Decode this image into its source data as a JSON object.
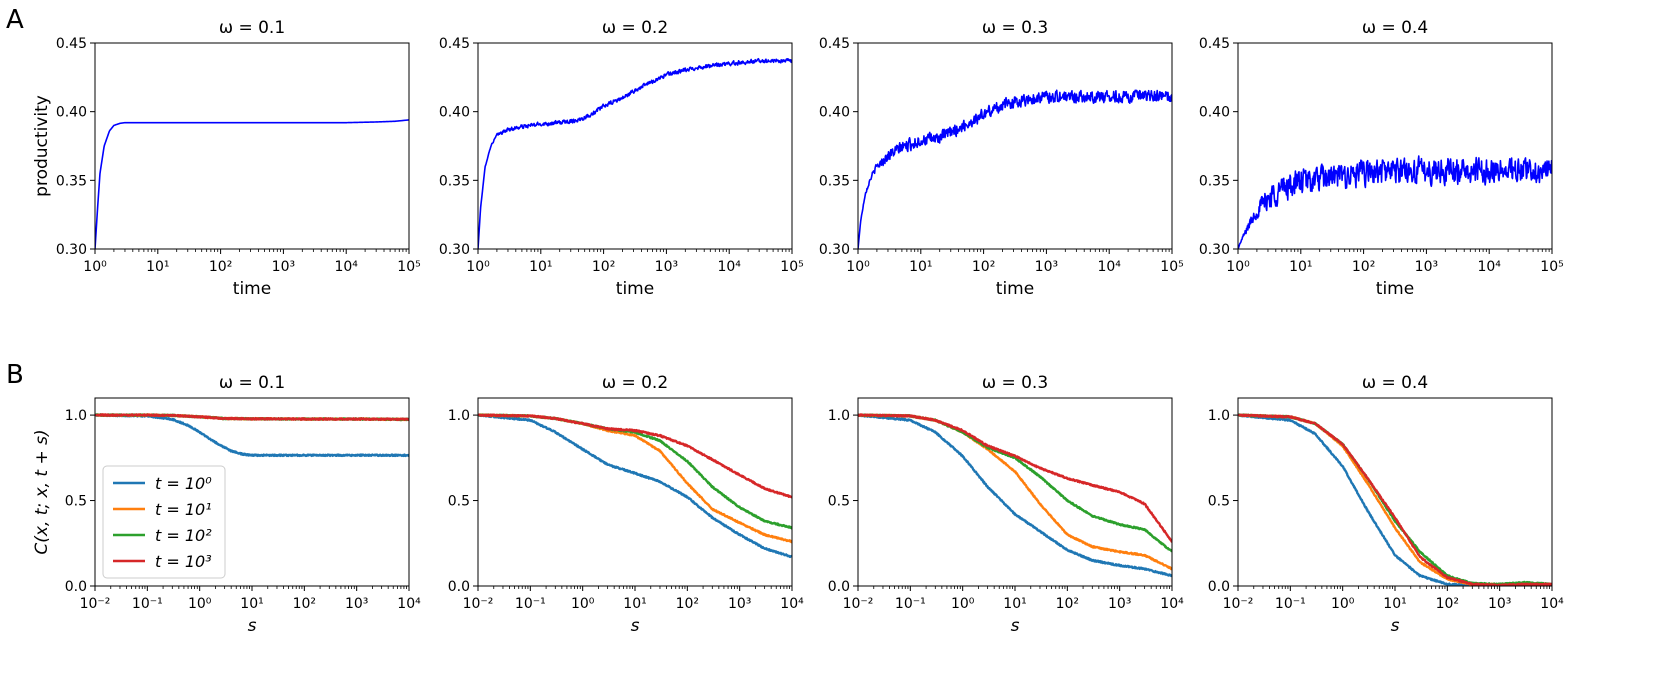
{
  "panel_letters": [
    "A",
    "B"
  ],
  "colors": {
    "productivity": "#0000ff",
    "t0": "#1f77b4",
    "t1": "#ff7f0e",
    "t2": "#2ca02c",
    "t3": "#d62728"
  },
  "chart_data": [
    {
      "type": "line",
      "panel": "A",
      "title": "ω = 0.1",
      "xlabel": "time",
      "ylabel": "productivity",
      "xscale": "log",
      "xlim": [
        1,
        100000
      ],
      "ylim": [
        0.3,
        0.45
      ],
      "xticks": [
        [
          "10⁰",
          1
        ],
        [
          "10¹",
          10
        ],
        [
          "10²",
          100
        ],
        [
          "10³",
          1000
        ],
        [
          "10⁴",
          10000
        ],
        [
          "10⁵",
          100000
        ]
      ],
      "yticks": [
        [
          "0.30",
          0.3
        ],
        [
          "0.35",
          0.35
        ],
        [
          "0.40",
          0.4
        ],
        [
          "0.45",
          0.45
        ]
      ],
      "series": [
        {
          "color_key": "productivity",
          "noise": 0.0,
          "x": [
            1,
            1.1,
            1.2,
            1.4,
            1.7,
            2,
            2.5,
            3,
            4,
            6,
            10,
            100,
            1000,
            10000,
            30000,
            60000,
            100000
          ],
          "y": [
            0.3,
            0.33,
            0.355,
            0.375,
            0.386,
            0.39,
            0.3915,
            0.392,
            0.392,
            0.392,
            0.392,
            0.392,
            0.392,
            0.392,
            0.3925,
            0.393,
            0.394
          ]
        }
      ]
    },
    {
      "type": "line",
      "panel": "A",
      "title": "ω = 0.2",
      "xlabel": "time",
      "ylabel": "",
      "xscale": "log",
      "xlim": [
        1,
        100000
      ],
      "ylim": [
        0.3,
        0.45
      ],
      "xticks": [
        [
          "10⁰",
          1
        ],
        [
          "10¹",
          10
        ],
        [
          "10²",
          100
        ],
        [
          "10³",
          1000
        ],
        [
          "10⁴",
          10000
        ],
        [
          "10⁵",
          100000
        ]
      ],
      "yticks": [
        [
          "0.30",
          0.3
        ],
        [
          "0.35",
          0.35
        ],
        [
          "0.40",
          0.4
        ],
        [
          "0.45",
          0.45
        ]
      ],
      "series": [
        {
          "color_key": "productivity",
          "noise": 0.0012,
          "x": [
            1,
            1.1,
            1.3,
            1.6,
            2,
            3,
            5,
            10,
            20,
            40,
            70,
            100,
            200,
            400,
            1000,
            3000,
            10000,
            30000,
            100000
          ],
          "y": [
            0.3,
            0.33,
            0.36,
            0.375,
            0.383,
            0.387,
            0.389,
            0.391,
            0.392,
            0.394,
            0.399,
            0.404,
            0.41,
            0.418,
            0.427,
            0.432,
            0.435,
            0.437,
            0.437
          ]
        }
      ]
    },
    {
      "type": "line",
      "panel": "A",
      "title": "ω = 0.3",
      "xlabel": "time",
      "ylabel": "",
      "xscale": "log",
      "xlim": [
        1,
        100000
      ],
      "ylim": [
        0.3,
        0.45
      ],
      "xticks": [
        [
          "10⁰",
          1
        ],
        [
          "10¹",
          10
        ],
        [
          "10²",
          100
        ],
        [
          "10³",
          1000
        ],
        [
          "10⁴",
          10000
        ],
        [
          "10⁵",
          100000
        ]
      ],
      "yticks": [
        [
          "0.30",
          0.3
        ],
        [
          "0.35",
          0.35
        ],
        [
          "0.40",
          0.4
        ],
        [
          "0.45",
          0.45
        ]
      ],
      "series": [
        {
          "color_key": "productivity",
          "noise": 0.0035,
          "x": [
            1,
            1.1,
            1.3,
            1.6,
            2,
            3,
            5,
            10,
            20,
            50,
            100,
            200,
            500,
            1000,
            3000,
            10000,
            30000,
            100000
          ],
          "y": [
            0.3,
            0.32,
            0.34,
            0.352,
            0.36,
            0.368,
            0.374,
            0.379,
            0.381,
            0.39,
            0.398,
            0.405,
            0.409,
            0.411,
            0.411,
            0.411,
            0.411,
            0.411
          ]
        }
      ]
    },
    {
      "type": "line",
      "panel": "A",
      "title": "ω = 0.4",
      "xlabel": "time",
      "ylabel": "",
      "xscale": "log",
      "xlim": [
        1,
        100000
      ],
      "ylim": [
        0.3,
        0.45
      ],
      "xticks": [
        [
          "10⁰",
          1
        ],
        [
          "10¹",
          10
        ],
        [
          "10²",
          100
        ],
        [
          "10³",
          1000
        ],
        [
          "10⁴",
          10000
        ],
        [
          "10⁵",
          100000
        ]
      ],
      "yticks": [
        [
          "0.30",
          0.3
        ],
        [
          "0.35",
          0.35
        ],
        [
          "0.40",
          0.4
        ],
        [
          "0.45",
          0.45
        ]
      ],
      "series": [
        {
          "color_key": "productivity",
          "noise": 0.0075,
          "x": [
            1,
            1.1,
            1.3,
            1.6,
            2,
            3,
            5,
            10,
            30,
            100,
            300,
            1000,
            3000,
            10000,
            30000,
            100000
          ],
          "y": [
            0.3,
            0.305,
            0.312,
            0.32,
            0.328,
            0.337,
            0.344,
            0.349,
            0.352,
            0.355,
            0.357,
            0.357,
            0.357,
            0.357,
            0.357,
            0.357
          ]
        }
      ]
    },
    {
      "type": "line",
      "panel": "B",
      "title": "ω = 0.1",
      "xlabel": "s",
      "ylabel": "C(x, t; x, t + s)",
      "xscale": "log",
      "xlim": [
        0.01,
        10000
      ],
      "ylim": [
        0.0,
        1.1
      ],
      "xticks": [
        [
          "10⁻²",
          0.01
        ],
        [
          "10⁻¹",
          0.1
        ],
        [
          "10⁰",
          1
        ],
        [
          "10¹",
          10
        ],
        [
          "10²",
          100
        ],
        [
          "10³",
          1000
        ],
        [
          "10⁴",
          10000
        ]
      ],
      "yticks": [
        [
          "0.0",
          0.0
        ],
        [
          "0.5",
          0.5
        ],
        [
          "1.0",
          1.0
        ]
      ],
      "legend": {
        "location": "lower-left",
        "entries": [
          "t = 10⁰",
          "t = 10¹",
          "t = 10²",
          "t = 10³"
        ]
      },
      "series": [
        {
          "name": "t = 10⁰",
          "color_key": "t0",
          "x": [
            0.01,
            0.1,
            0.3,
            0.6,
            1,
            2,
            4,
            7,
            10,
            100,
            1000,
            10000
          ],
          "y": [
            1.0,
            0.995,
            0.975,
            0.94,
            0.9,
            0.84,
            0.79,
            0.77,
            0.765,
            0.765,
            0.765,
            0.765
          ]
        },
        {
          "name": "t = 10¹",
          "color_key": "t1",
          "x": [
            0.01,
            0.1,
            0.3,
            1,
            3,
            10,
            100,
            1000,
            10000
          ],
          "y": [
            1.0,
            1.0,
            0.998,
            0.99,
            0.98,
            0.978,
            0.977,
            0.977,
            0.975
          ]
        },
        {
          "name": "t = 10²",
          "color_key": "t2",
          "x": [
            0.01,
            0.1,
            0.3,
            1,
            3,
            10,
            100,
            1000,
            10000
          ],
          "y": [
            1.0,
            1.0,
            0.998,
            0.99,
            0.98,
            0.978,
            0.977,
            0.977,
            0.975
          ]
        },
        {
          "name": "t = 10³",
          "color_key": "t3",
          "x": [
            0.01,
            0.1,
            0.3,
            1,
            3,
            10,
            100,
            1000,
            10000
          ],
          "y": [
            1.0,
            1.0,
            0.998,
            0.99,
            0.98,
            0.978,
            0.977,
            0.977,
            0.975
          ]
        }
      ]
    },
    {
      "type": "line",
      "panel": "B",
      "title": "ω = 0.2",
      "xlabel": "s",
      "ylabel": "",
      "xscale": "log",
      "xlim": [
        0.01,
        10000
      ],
      "ylim": [
        0.0,
        1.1
      ],
      "xticks": [
        [
          "10⁻²",
          0.01
        ],
        [
          "10⁻¹",
          0.1
        ],
        [
          "10⁰",
          1
        ],
        [
          "10¹",
          10
        ],
        [
          "10²",
          100
        ],
        [
          "10³",
          1000
        ],
        [
          "10⁴",
          10000
        ]
      ],
      "yticks": [
        [
          "0.0",
          0.0
        ],
        [
          "0.5",
          0.5
        ],
        [
          "1.0",
          1.0
        ]
      ],
      "series": [
        {
          "name": "t = 10⁰",
          "color_key": "t0",
          "x": [
            0.01,
            0.1,
            0.3,
            1,
            3,
            10,
            30,
            100,
            300,
            1000,
            3000,
            10000
          ],
          "y": [
            1.0,
            0.97,
            0.9,
            0.8,
            0.71,
            0.66,
            0.61,
            0.52,
            0.4,
            0.3,
            0.22,
            0.17
          ]
        },
        {
          "name": "t = 10¹",
          "color_key": "t1",
          "x": [
            0.01,
            0.1,
            0.3,
            1,
            3,
            10,
            30,
            100,
            300,
            1000,
            3000,
            10000
          ],
          "y": [
            1.0,
            0.995,
            0.98,
            0.95,
            0.91,
            0.88,
            0.79,
            0.6,
            0.45,
            0.37,
            0.3,
            0.26
          ]
        },
        {
          "name": "t = 10²",
          "color_key": "t2",
          "x": [
            0.01,
            0.1,
            0.3,
            1,
            3,
            10,
            30,
            100,
            300,
            1000,
            3000,
            10000
          ],
          "y": [
            1.0,
            0.995,
            0.98,
            0.95,
            0.92,
            0.9,
            0.85,
            0.73,
            0.58,
            0.46,
            0.38,
            0.34
          ]
        },
        {
          "name": "t = 10³",
          "color_key": "t3",
          "x": [
            0.01,
            0.1,
            0.3,
            1,
            3,
            10,
            30,
            100,
            300,
            1000,
            3000,
            10000
          ],
          "y": [
            1.0,
            0.995,
            0.98,
            0.95,
            0.92,
            0.91,
            0.88,
            0.82,
            0.74,
            0.65,
            0.57,
            0.52
          ]
        }
      ]
    },
    {
      "type": "line",
      "panel": "B",
      "title": "ω = 0.3",
      "xlabel": "s",
      "ylabel": "",
      "xscale": "log",
      "xlim": [
        0.01,
        10000
      ],
      "ylim": [
        0.0,
        1.1
      ],
      "xticks": [
        [
          "10⁻²",
          0.01
        ],
        [
          "10⁻¹",
          0.1
        ],
        [
          "10⁰",
          1
        ],
        [
          "10¹",
          10
        ],
        [
          "10²",
          100
        ],
        [
          "10³",
          1000
        ],
        [
          "10⁴",
          10000
        ]
      ],
      "yticks": [
        [
          "0.0",
          0.0
        ],
        [
          "0.5",
          0.5
        ],
        [
          "1.0",
          1.0
        ]
      ],
      "series": [
        {
          "name": "t = 10⁰",
          "color_key": "t0",
          "x": [
            0.01,
            0.1,
            0.3,
            1,
            3,
            10,
            30,
            100,
            300,
            1000,
            3000,
            10000
          ],
          "y": [
            1.0,
            0.97,
            0.9,
            0.76,
            0.58,
            0.42,
            0.32,
            0.21,
            0.15,
            0.12,
            0.1,
            0.06
          ]
        },
        {
          "name": "t = 10¹",
          "color_key": "t1",
          "x": [
            0.01,
            0.1,
            0.3,
            1,
            3,
            10,
            30,
            100,
            300,
            1000,
            3000,
            10000
          ],
          "y": [
            1.0,
            0.995,
            0.97,
            0.9,
            0.8,
            0.67,
            0.48,
            0.3,
            0.23,
            0.2,
            0.18,
            0.1
          ]
        },
        {
          "name": "t = 10²",
          "color_key": "t2",
          "x": [
            0.01,
            0.1,
            0.3,
            1,
            3,
            10,
            30,
            100,
            300,
            1000,
            3000,
            10000
          ],
          "y": [
            1.0,
            0.995,
            0.97,
            0.9,
            0.81,
            0.75,
            0.64,
            0.5,
            0.41,
            0.36,
            0.33,
            0.2
          ]
        },
        {
          "name": "t = 10³",
          "color_key": "t3",
          "x": [
            0.01,
            0.1,
            0.3,
            1,
            3,
            10,
            30,
            100,
            300,
            1000,
            3000,
            10000
          ],
          "y": [
            1.0,
            0.995,
            0.97,
            0.91,
            0.82,
            0.76,
            0.69,
            0.63,
            0.59,
            0.55,
            0.48,
            0.26
          ]
        }
      ]
    },
    {
      "type": "line",
      "panel": "B",
      "title": "ω = 0.4",
      "xlabel": "s",
      "ylabel": "",
      "xscale": "log",
      "xlim": [
        0.01,
        10000
      ],
      "ylim": [
        0.0,
        1.1
      ],
      "xticks": [
        [
          "10⁻²",
          0.01
        ],
        [
          "10⁻¹",
          0.1
        ],
        [
          "10⁰",
          1
        ],
        [
          "10¹",
          10
        ],
        [
          "10²",
          100
        ],
        [
          "10³",
          1000
        ],
        [
          "10⁴",
          10000
        ]
      ],
      "yticks": [
        [
          "0.0",
          0.0
        ],
        [
          "0.5",
          0.5
        ],
        [
          "1.0",
          1.0
        ]
      ],
      "series": [
        {
          "name": "t = 10⁰",
          "color_key": "t0",
          "x": [
            0.01,
            0.1,
            0.3,
            1,
            3,
            10,
            30,
            100,
            300,
            1000,
            3000,
            10000
          ],
          "y": [
            1.0,
            0.97,
            0.89,
            0.7,
            0.44,
            0.18,
            0.06,
            0.01,
            0.005,
            0.005,
            0.005,
            0.01
          ]
        },
        {
          "name": "t = 10¹",
          "color_key": "t1",
          "x": [
            0.01,
            0.1,
            0.3,
            1,
            3,
            10,
            30,
            100,
            300,
            1000,
            3000,
            10000
          ],
          "y": [
            1.0,
            0.99,
            0.95,
            0.82,
            0.6,
            0.34,
            0.14,
            0.04,
            0.01,
            0.01,
            0.01,
            0.01
          ]
        },
        {
          "name": "t = 10²",
          "color_key": "t2",
          "x": [
            0.01,
            0.1,
            0.3,
            1,
            3,
            10,
            30,
            100,
            300,
            1000,
            3000,
            10000
          ],
          "y": [
            1.0,
            0.99,
            0.95,
            0.83,
            0.63,
            0.38,
            0.2,
            0.06,
            0.015,
            0.01,
            0.02,
            0.01
          ]
        },
        {
          "name": "t = 10³",
          "color_key": "t3",
          "x": [
            0.01,
            0.1,
            0.3,
            1,
            3,
            10,
            30,
            100,
            300,
            1000,
            3000,
            10000
          ],
          "y": [
            1.0,
            0.99,
            0.95,
            0.83,
            0.63,
            0.4,
            0.17,
            0.05,
            0.01,
            0.005,
            0.01,
            0.01
          ]
        }
      ]
    }
  ]
}
